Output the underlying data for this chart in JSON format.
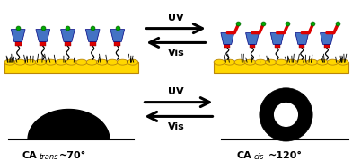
{
  "bg_color": "#ffffff",
  "gold_color": "#FFD700",
  "gold_dark": "#B8860B",
  "blue_color": "#4472C4",
  "red_color": "#DD0000",
  "green_color": "#00AA00",
  "black_color": "#000000",
  "label_left_sub": "trans",
  "label_left_val": "~70°",
  "label_right_sub": "cis",
  "label_right_val": "~120°",
  "uv_text": "UV",
  "vis_text": "Vis",
  "figw": 3.92,
  "figh": 1.8,
  "dpi": 100
}
